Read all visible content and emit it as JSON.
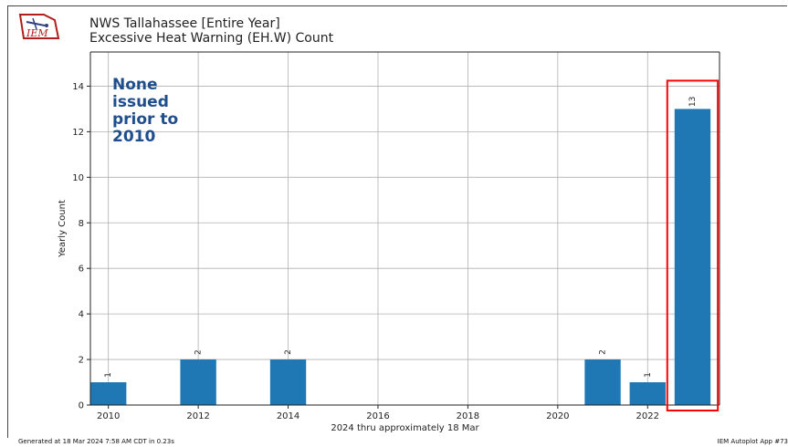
{
  "header": {
    "logo_text": "IEM",
    "title_line1": "NWS Tallahassee [Entire Year]",
    "title_line2": "Excessive Heat Warning (EH.W) Count"
  },
  "footer": {
    "left": "Generated at 18 Mar 2024 7:58 AM CDT in 0.23s",
    "right": "IEM Autoplot App #73"
  },
  "chart_data": {
    "type": "bar",
    "x": [
      2010,
      2012,
      2014,
      2021,
      2022,
      2023
    ],
    "values": [
      1,
      2,
      2,
      2,
      1,
      13
    ],
    "data_labels": [
      "1",
      "2",
      "2",
      "2",
      "1",
      "13"
    ],
    "xlabel": "2024 thru approximately 18 Mar",
    "ylabel": "Yearly Count",
    "xticks": [
      2010,
      2012,
      2014,
      2016,
      2018,
      2020,
      2022
    ],
    "yticks": [
      0,
      2,
      4,
      6,
      8,
      10,
      12,
      14
    ],
    "xlim": [
      2009.6,
      2023.6
    ],
    "ylim": [
      0,
      15.5
    ],
    "grid": true,
    "bar_color": "#1f77b4",
    "highlight_color": "#ff0000",
    "highlighted_x": 2023,
    "annotation": "None\nissued\nprior to\n2010"
  }
}
